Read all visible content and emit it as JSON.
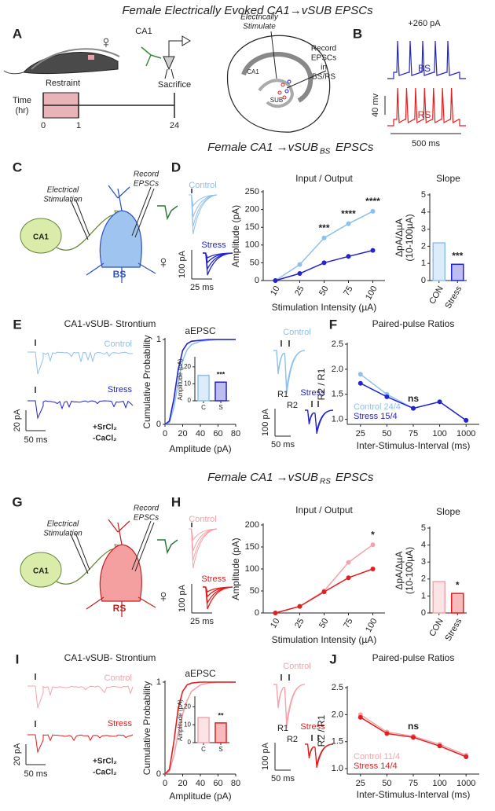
{
  "figure": {
    "title": "Female Electrically Evoked CA1→vSUB EPSCs",
    "panels": [
      "A",
      "B",
      "C",
      "D",
      "E",
      "F",
      "G",
      "H",
      "I",
      "J"
    ],
    "female": "♀",
    "sections": [
      {
        "text": "Female CA1 →vSUB",
        "sub": "BS",
        "end": "EPSCs"
      },
      {
        "text": "Female CA1 →vSUB",
        "sub": "RS",
        "end": "EPSCs"
      }
    ],
    "panel_a": {
      "ca1": "CA1",
      "sacrifice": "Sacrifice",
      "stimulate": [
        "Electrically",
        "Stimulate"
      ],
      "record": [
        "Record",
        "EPSCs",
        "in",
        "BS/RS"
      ],
      "restraint": "Restraint",
      "time": [
        "Time",
        "(hr)"
      ],
      "ticks": [
        0,
        1,
        24
      ],
      "hippo_ca1": "CA1",
      "hippo_sub": "SUB"
    },
    "panel_b": {
      "current": "+260 pA",
      "bs": "BS",
      "rs": "RS",
      "vscale": "40 mv",
      "tscale": "500 ms"
    },
    "panel_c": {
      "stim": [
        "Electrical",
        "Stimulation"
      ],
      "record": [
        "Record",
        "EPSCs"
      ],
      "ca1": "CA1",
      "cell": "BS"
    },
    "panel_g": {
      "stim": [
        "Electrical",
        "Stimulation"
      ],
      "record": [
        "Record",
        "EPSCs"
      ],
      "ca1": "CA1",
      "cell": "RS"
    },
    "traces_d": {
      "vscale": "100 pA",
      "tscale": "25 ms"
    },
    "traces_e": {
      "title": "CA1-vSUB- Strontium",
      "vscale": "20 pA",
      "tscale": "50 ms",
      "sr": "+SrCl₂",
      "ca": "-CaCl₂"
    },
    "traces_f": {
      "control": "Control",
      "stress": "Stress",
      "r1": "R1",
      "r2": "R2",
      "vscale": "100 pA",
      "tscale": "50 ms"
    },
    "traces_h": {
      "vscale": "100 pA",
      "tscale": "25 ms"
    },
    "traces_i": {
      "title": "CA1-vSUB- Strontium",
      "vscale": "20 pA",
      "tscale": "50 ms",
      "sr": "+SrCl₂",
      "ca": "-CaCl₂"
    },
    "traces_j": {
      "control": "Control",
      "stress": "Stress",
      "r1": "R1",
      "r2": "R2",
      "vscale": "100 pA",
      "tscale": "50 ms"
    }
  },
  "chart_data": [
    {
      "type": "line",
      "title": "Input / Output",
      "xlabel": "Stimulation Intensity (µA)",
      "ylabel": "Amplitude (pA)",
      "categories": [
        "10",
        "25",
        "50",
        "75",
        "100"
      ],
      "markers": true,
      "series": [
        {
          "name": "Control",
          "color": "#8ec0ee",
          "values": [
            0,
            45,
            120,
            160,
            195
          ]
        },
        {
          "name": "Stress",
          "color": "#2323d0",
          "values": [
            0,
            20,
            50,
            68,
            85
          ]
        }
      ],
      "ylim": [
        0,
        250
      ],
      "yticks": [
        0,
        50,
        100,
        150,
        200,
        250
      ],
      "annotations": [
        {
          "text": "***",
          "x": "50"
        },
        {
          "text": "****",
          "x": "75"
        },
        {
          "text": "****",
          "x": "100"
        }
      ]
    },
    {
      "type": "bar",
      "title": "Slope",
      "ylabel": [
        "ΔpA/ΔµA",
        "(10-100µA)"
      ],
      "categories": [
        "CON",
        "Stress"
      ],
      "values": [
        2.2,
        0.95
      ],
      "colors": [
        "#8ec0ee",
        "#2323d0"
      ],
      "ylim": [
        0,
        5
      ],
      "yticks": [
        0,
        1,
        2,
        3,
        4,
        5
      ],
      "annotations": [
        {
          "text": "***",
          "x": "Stress"
        }
      ]
    },
    {
      "type": "line",
      "title": "aEPSC",
      "xlabel": "Amplitude (pA)",
      "ylabel": "Cumulative Probability",
      "x": [
        0,
        5,
        10,
        15,
        20,
        25,
        30,
        40,
        50,
        60,
        70,
        80
      ],
      "series": [
        {
          "name": "Control",
          "color": "#8ec0ee",
          "values": [
            0,
            0.02,
            0.2,
            0.5,
            0.75,
            0.88,
            0.94,
            0.98,
            0.99,
            1,
            1,
            1
          ]
        },
        {
          "name": "Stress",
          "color": "#2323d0",
          "values": [
            0,
            0.04,
            0.3,
            0.65,
            0.87,
            0.95,
            0.98,
            0.99,
            1,
            1,
            1,
            1
          ]
        }
      ],
      "xlim": [
        0,
        80
      ],
      "xticks": [
        0,
        20,
        40,
        60,
        80
      ],
      "ylim": [
        0,
        1
      ],
      "yticks": [
        0,
        1
      ]
    },
    {
      "type": "bar",
      "ylabel": "Amplitude (pA)",
      "categories": [
        "C",
        "S"
      ],
      "values": [
        15,
        11
      ],
      "colors": [
        "#8ec0ee",
        "#2323d0"
      ],
      "ylim": [
        0,
        25
      ],
      "yticks": [
        0,
        10,
        20
      ],
      "annotations": [
        {
          "text": "***",
          "x": "S"
        }
      ]
    },
    {
      "type": "line",
      "title": "Paired-pulse Ratios",
      "xlabel": "Inter-Stimulus-Interval (ms)",
      "ylabel": "R2 / R1",
      "categories": [
        "25",
        "50",
        "75",
        "100",
        "1000"
      ],
      "markers": true,
      "legend": "lower-left",
      "series": [
        {
          "name": "Control 24/4",
          "color": "#8ec0ee",
          "values": [
            1.9,
            1.5,
            1.22,
            1.35,
            0.98
          ]
        },
        {
          "name": "Stress 15/4",
          "color": "#2323d0",
          "values": [
            1.72,
            1.45,
            1.22,
            1.35,
            0.98
          ]
        }
      ],
      "ylim": [
        0.9,
        2.5
      ],
      "yticks": [
        {
          "value": 1,
          "label": "1.0"
        },
        1.5,
        {
          "value": 2,
          "label": "2.0"
        },
        2.5
      ],
      "annotations": [
        {
          "text": "ns",
          "x": "75"
        }
      ]
    },
    {
      "type": "line",
      "title": "Input / Output",
      "xlabel": "Stimulation Intensity (µA)",
      "ylabel": "Amplitude (pA)",
      "categories": [
        "10",
        "25",
        "50",
        "75",
        "100"
      ],
      "markers": true,
      "series": [
        {
          "name": "Control",
          "color": "#f5a3aa",
          "values": [
            0,
            15,
            50,
            115,
            155
          ]
        },
        {
          "name": "Stress",
          "color": "#e31e1e",
          "values": [
            0,
            15,
            48,
            80,
            100
          ]
        }
      ],
      "ylim": [
        0,
        200
      ],
      "yticks": [
        0,
        50,
        100,
        150,
        200
      ],
      "annotations": [
        {
          "text": "*",
          "x": "100"
        }
      ]
    },
    {
      "type": "bar",
      "title": "Slope",
      "ylabel": [
        "ΔpA/ΔµA",
        "(10-100µA)"
      ],
      "categories": [
        "CON",
        "Stress"
      ],
      "values": [
        1.85,
        1.15
      ],
      "colors": [
        "#f5a3aa",
        "#e31e1e"
      ],
      "ylim": [
        0,
        5
      ],
      "yticks": [
        0,
        1,
        2,
        3,
        4,
        5
      ],
      "annotations": [
        {
          "text": "*",
          "x": "Stress"
        }
      ]
    },
    {
      "type": "line",
      "title": "aEPSC",
      "xlabel": "Amplitude (pA)",
      "ylabel": "Cumulative Probability",
      "x": [
        0,
        5,
        10,
        15,
        20,
        25,
        30,
        40,
        50,
        60,
        70,
        80
      ],
      "series": [
        {
          "name": "Control",
          "color": "#f5a3aa",
          "values": [
            0,
            0.03,
            0.2,
            0.45,
            0.65,
            0.8,
            0.9,
            0.97,
            0.99,
            1,
            1,
            1
          ]
        },
        {
          "name": "Stress",
          "color": "#e31e1e",
          "values": [
            0,
            0.05,
            0.35,
            0.72,
            0.9,
            0.97,
            0.99,
            1,
            1,
            1,
            1,
            1
          ]
        }
      ],
      "xlim": [
        0,
        80
      ],
      "xticks": [
        0,
        20,
        40,
        60,
        80
      ],
      "ylim": [
        0,
        1
      ],
      "yticks": [
        0,
        1
      ]
    },
    {
      "type": "bar",
      "ylabel": "Amplitude (pA)",
      "categories": [
        "C",
        "S"
      ],
      "values": [
        14,
        11
      ],
      "colors": [
        "#f5a3aa",
        "#e31e1e"
      ],
      "ylim": [
        0,
        25
      ],
      "yticks": [
        0,
        10,
        20
      ],
      "annotations": [
        {
          "text": "**",
          "x": "S"
        }
      ]
    },
    {
      "type": "line",
      "title": "Paired-pulse Ratios",
      "xlabel": "Inter-Stimulus-Interval (ms)",
      "ylabel": "R2 / R1",
      "categories": [
        "25",
        "50",
        "75",
        "100",
        "1000"
      ],
      "markers": true,
      "legend": "lower-left",
      "series": [
        {
          "name": "Control 11/4",
          "color": "#f5a3aa",
          "values": [
            2.0,
            1.68,
            1.6,
            1.45,
            1.25
          ]
        },
        {
          "name": "Stress 14/4",
          "color": "#e31e1e",
          "values": [
            1.95,
            1.65,
            1.58,
            1.42,
            1.22
          ]
        }
      ],
      "ylim": [
        0.9,
        2.5
      ],
      "yticks": [
        {
          "value": 1,
          "label": "1.0"
        },
        1.5,
        {
          "value": 2,
          "label": "2.0"
        },
        2.5
      ],
      "annotations": [
        {
          "text": "ns",
          "x": "75"
        }
      ]
    }
  ]
}
